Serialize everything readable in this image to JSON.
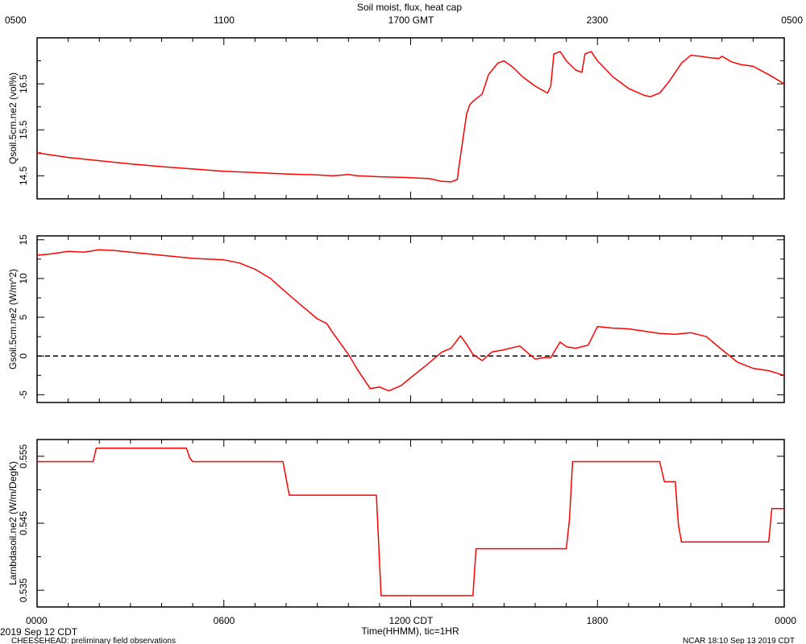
{
  "title": "Soil moist, flux, heat cap",
  "top_axis": {
    "ticks": [
      "0500",
      "1100",
      "1700 GMT",
      "2300",
      "0500"
    ]
  },
  "bottom_axis": {
    "ticks": [
      "0000",
      "0600",
      "1200 CDT",
      "1800",
      "0000"
    ],
    "label": "Time(HHMM), tic=1HR",
    "date": "2019 Sep 12 CDT"
  },
  "footer": {
    "left": "CHEESEHEAD: preliminary field observations",
    "right": "NCAR 18:10 Sep 13 2019 CDT"
  },
  "colors": {
    "series": "#ff0000",
    "axis": "#000000",
    "zero_line": "#000000"
  },
  "chart_data": [
    {
      "type": "line",
      "ylabel": "Qsoil.5cm.ne2 (vol%)",
      "xlim": [
        0,
        24
      ],
      "ylim": [
        14.0,
        17.5
      ],
      "yticks": [
        "14.5",
        "15.5",
        "16.5"
      ],
      "grid": false,
      "series": [
        {
          "x": [
            0,
            1,
            2,
            3,
            4,
            5,
            6,
            7,
            8,
            9,
            9.5,
            10,
            10.3,
            10.7,
            11,
            11.5,
            12,
            12.6,
            13,
            13.3,
            13.5,
            13.55,
            13.7,
            13.8,
            13.9,
            14,
            14.3,
            14.5,
            14.8,
            15,
            15.3,
            15.6,
            16,
            16.4,
            16.5,
            16.6,
            16.8,
            17,
            17.3,
            17.5,
            17.6,
            17.8,
            18,
            18.5,
            19,
            19.5,
            19.7,
            20,
            20.3,
            20.7,
            21,
            21.3,
            21.6,
            21.9,
            22,
            22.3,
            22.6,
            23,
            23.5,
            24
          ],
          "y": [
            15.0,
            14.9,
            14.83,
            14.76,
            14.7,
            14.65,
            14.6,
            14.57,
            14.54,
            14.52,
            14.5,
            14.53,
            14.5,
            14.49,
            14.48,
            14.47,
            14.46,
            14.44,
            14.38,
            14.37,
            14.42,
            14.7,
            15.4,
            15.85,
            16.05,
            16.12,
            16.28,
            16.7,
            16.95,
            17.0,
            16.85,
            16.65,
            16.45,
            16.3,
            16.45,
            17.15,
            17.2,
            17.0,
            16.8,
            16.75,
            17.15,
            17.2,
            17.0,
            16.65,
            16.4,
            16.25,
            16.22,
            16.3,
            16.55,
            16.95,
            17.12,
            17.1,
            17.07,
            17.05,
            17.1,
            16.98,
            16.92,
            16.88,
            16.7,
            16.5
          ]
        }
      ]
    },
    {
      "type": "line",
      "ylabel": "Gsoil.5cm.ne2 (W/m^2)",
      "xlim": [
        0,
        24
      ],
      "ylim": [
        -6,
        15.5
      ],
      "yticks": [
        "-5",
        "0",
        "5",
        "10",
        "15"
      ],
      "reference_line": 0,
      "grid": false,
      "series": [
        {
          "x": [
            0,
            0.5,
            1,
            1.5,
            2,
            2.5,
            3,
            3.5,
            4,
            4.5,
            5,
            5.5,
            6,
            6.5,
            7,
            7.5,
            8,
            8.5,
            9,
            9.3,
            9.5,
            10,
            10.3,
            10.7,
            11,
            11.3,
            11.7,
            12,
            12.5,
            13,
            13.3,
            13.6,
            13.8,
            14,
            14.3,
            14.6,
            15,
            15.5,
            16,
            16.3,
            16.5,
            16.8,
            17,
            17.3,
            17.7,
            18,
            18.5,
            19,
            19.5,
            20,
            20.5,
            21,
            21.5,
            22,
            22.5,
            23,
            23.5,
            24
          ],
          "y": [
            13,
            13.2,
            13.5,
            13.4,
            13.7,
            13.6,
            13.4,
            13.2,
            13,
            12.8,
            12.6,
            12.5,
            12.4,
            12.0,
            11.2,
            10.0,
            8.2,
            6.5,
            4.8,
            4.2,
            3.0,
            0.2,
            -1.8,
            -4.2,
            -4.0,
            -4.5,
            -3.8,
            -2.8,
            -1.2,
            0.5,
            1.0,
            2.6,
            1.5,
            0.2,
            -0.6,
            0.5,
            0.8,
            1.3,
            -0.4,
            -0.2,
            -0.2,
            1.8,
            1.2,
            1.0,
            1.4,
            3.8,
            3.6,
            3.5,
            3.2,
            2.9,
            2.8,
            3.0,
            2.5,
            0.8,
            -0.8,
            -1.6,
            -1.9,
            -2.5
          ]
        }
      ]
    },
    {
      "type": "line",
      "ylabel": "Lambdasoil.ne2 (W/m/DegK)",
      "xlim": [
        0,
        24
      ],
      "ylim": [
        0.5325,
        0.5575
      ],
      "yticks": [
        "0.535",
        "0.545",
        "0.555"
      ],
      "grid": false,
      "series": [
        {
          "x": [
            0,
            1.8,
            1.9,
            4.8,
            4.9,
            5.0,
            7.9,
            8.1,
            10.9,
            11.05,
            14.0,
            14.1,
            17.0,
            17.1,
            17.2,
            20.0,
            20.15,
            20.5,
            20.6,
            20.7,
            23.5,
            23.6,
            24
          ],
          "y": [
            0.5542,
            0.5542,
            0.5562,
            0.5562,
            0.5548,
            0.5542,
            0.5542,
            0.5492,
            0.5492,
            0.5342,
            0.5342,
            0.5412,
            0.5412,
            0.5455,
            0.5542,
            0.5542,
            0.5512,
            0.5512,
            0.5448,
            0.5422,
            0.5422,
            0.5472,
            0.5472
          ]
        }
      ]
    }
  ]
}
